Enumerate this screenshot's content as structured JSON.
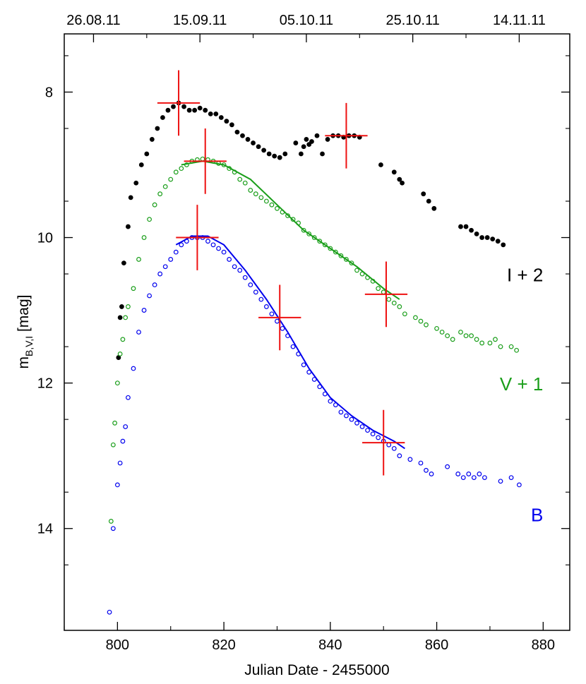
{
  "chart_data": {
    "type": "scatter",
    "title": "",
    "xlabel": "Julian Date - 2455000",
    "ylabel_main": "m",
    "ylabel_sub": "B,V,I",
    "ylabel_unit": " [mag]",
    "xlim": [
      790,
      885
    ],
    "ylim": [
      15.4,
      7.2
    ],
    "y_inverted": true,
    "grid": false,
    "x_ticks": [
      800,
      820,
      840,
      860,
      880
    ],
    "x_tick_labels": [
      "800",
      "820",
      "840",
      "860",
      "880"
    ],
    "y_ticks": [
      8,
      10,
      12,
      14
    ],
    "y_tick_labels": [
      "8",
      "10",
      "12",
      "14"
    ],
    "top_ticks": [
      {
        "x": 795.5,
        "label": "26.08.11"
      },
      {
        "x": 815.5,
        "label": "15.09.11"
      },
      {
        "x": 835.5,
        "label": "05.10.11"
      },
      {
        "x": 855.5,
        "label": "25.10.11"
      },
      {
        "x": 875.5,
        "label": "14.11.11"
      }
    ],
    "colors": {
      "I": "#000000",
      "V": "#1a9e1a",
      "B": "#0000ee",
      "cross": "#ee1111"
    },
    "series": [
      {
        "name": "I + 2",
        "color": "#000000",
        "marker": "filled-circle",
        "x": [
          800.2,
          800.5,
          800.8,
          801.2,
          802.0,
          802.5,
          803.5,
          804.5,
          805.5,
          806.5,
          807.5,
          808.5,
          809.5,
          810.5,
          811.5,
          812.5,
          813.5,
          814.5,
          815.5,
          816.5,
          817.5,
          818.5,
          819.5,
          820.5,
          821.5,
          822.5,
          823.5,
          824.5,
          825.5,
          826.5,
          827.5,
          828.5,
          829.5,
          830.5,
          831.5,
          833.5,
          834.5,
          835.0,
          835.5,
          836.0,
          836.5,
          837.5,
          838.5,
          839.5,
          840.5,
          841.5,
          842.5,
          843.5,
          844.5,
          845.5,
          849.5,
          852.0,
          853.0,
          853.5,
          857.5,
          858.5,
          859.5,
          864.5,
          865.5,
          866.5,
          867.5,
          868.5,
          869.5,
          870.5,
          871.5,
          872.5
        ],
        "y": [
          11.65,
          11.1,
          10.95,
          10.35,
          9.85,
          9.45,
          9.25,
          9.0,
          8.85,
          8.65,
          8.5,
          8.35,
          8.25,
          8.2,
          8.15,
          8.2,
          8.25,
          8.25,
          8.22,
          8.25,
          8.3,
          8.3,
          8.35,
          8.4,
          8.45,
          8.55,
          8.6,
          8.65,
          8.7,
          8.75,
          8.8,
          8.85,
          8.88,
          8.9,
          8.85,
          8.7,
          8.85,
          8.75,
          8.65,
          8.72,
          8.68,
          8.6,
          8.85,
          8.65,
          8.6,
          8.6,
          8.62,
          8.6,
          8.6,
          8.62,
          9.0,
          9.1,
          9.2,
          9.25,
          9.4,
          9.5,
          9.6,
          9.85,
          9.85,
          9.9,
          9.95,
          10.0,
          10.0,
          10.02,
          10.05,
          10.1
        ]
      },
      {
        "name": "V + 1",
        "color": "#1a9e1a",
        "marker": "open-circle",
        "x": [
          798.8,
          799.2,
          799.5,
          800.0,
          800.5,
          801.0,
          801.5,
          802.0,
          803.0,
          804.0,
          805.0,
          806.0,
          807.0,
          808.0,
          809.0,
          810.0,
          811.0,
          812.0,
          813.0,
          814.0,
          815.0,
          816.0,
          817.0,
          818.0,
          819.0,
          820.0,
          821.0,
          822.0,
          823.0,
          824.0,
          825.0,
          826.0,
          827.0,
          828.0,
          829.0,
          830.0,
          831.0,
          832.0,
          833.0,
          834.0,
          835.0,
          836.0,
          837.0,
          838.0,
          839.0,
          840.0,
          841.0,
          842.0,
          843.0,
          844.0,
          845.0,
          846.0,
          847.0,
          848.0,
          849.0,
          850.0,
          851.0,
          852.0,
          853.0,
          854.0,
          856.0,
          857.0,
          858.0,
          860.0,
          861.0,
          862.0,
          863.0,
          864.5,
          865.5,
          866.5,
          867.5,
          868.5,
          870.0,
          871.0,
          872.0,
          874.0,
          875.0
        ],
        "y": [
          13.9,
          12.85,
          12.55,
          12.0,
          11.6,
          11.4,
          11.1,
          10.95,
          10.7,
          10.3,
          10.0,
          9.75,
          9.55,
          9.4,
          9.3,
          9.2,
          9.1,
          9.05,
          9.0,
          8.95,
          8.93,
          8.92,
          8.93,
          8.95,
          8.98,
          9.0,
          9.05,
          9.1,
          9.2,
          9.25,
          9.35,
          9.4,
          9.45,
          9.5,
          9.55,
          9.6,
          9.65,
          9.7,
          9.75,
          9.8,
          9.9,
          9.95,
          10.0,
          10.05,
          10.1,
          10.15,
          10.2,
          10.25,
          10.3,
          10.35,
          10.45,
          10.5,
          10.55,
          10.6,
          10.7,
          10.75,
          10.85,
          10.9,
          10.95,
          11.05,
          11.1,
          11.15,
          11.2,
          11.25,
          11.3,
          11.35,
          11.4,
          11.3,
          11.35,
          11.35,
          11.4,
          11.45,
          11.45,
          11.4,
          11.5,
          11.5,
          11.55
        ]
      },
      {
        "name": "B",
        "color": "#0000ee",
        "marker": "open-circle",
        "x": [
          798.5,
          799.2,
          800.0,
          800.5,
          801.0,
          801.5,
          802.0,
          803.0,
          804.0,
          805.0,
          806.0,
          807.0,
          808.0,
          809.0,
          810.0,
          811.0,
          812.0,
          813.0,
          814.0,
          815.0,
          816.0,
          817.0,
          818.0,
          819.0,
          820.0,
          821.0,
          822.0,
          823.0,
          824.0,
          825.0,
          826.0,
          827.0,
          828.0,
          829.0,
          830.0,
          831.0,
          832.0,
          833.0,
          834.0,
          835.0,
          836.0,
          837.0,
          838.0,
          839.0,
          840.0,
          841.0,
          842.0,
          843.0,
          844.0,
          845.0,
          846.0,
          847.0,
          848.0,
          849.0,
          850.0,
          851.0,
          852.0,
          853.0,
          855.0,
          857.0,
          858.0,
          859.0,
          862.0,
          864.0,
          865.0,
          866.0,
          867.0,
          868.0,
          869.0,
          872.0,
          874.0,
          875.5
        ],
        "y": [
          15.15,
          14.0,
          13.4,
          13.1,
          12.8,
          12.6,
          12.2,
          11.8,
          11.3,
          11.0,
          10.8,
          10.65,
          10.5,
          10.4,
          10.3,
          10.2,
          10.1,
          10.05,
          10.0,
          10.0,
          10.0,
          10.05,
          10.1,
          10.15,
          10.2,
          10.3,
          10.4,
          10.45,
          10.55,
          10.65,
          10.75,
          10.85,
          10.95,
          11.05,
          11.15,
          11.25,
          11.35,
          11.5,
          11.6,
          11.75,
          11.85,
          11.95,
          12.05,
          12.15,
          12.25,
          12.3,
          12.4,
          12.45,
          12.5,
          12.55,
          12.6,
          12.65,
          12.7,
          12.75,
          12.8,
          12.85,
          12.9,
          13.0,
          13.05,
          13.1,
          13.2,
          13.25,
          13.15,
          13.25,
          13.3,
          13.25,
          13.3,
          13.25,
          13.3,
          13.35,
          13.3,
          13.4
        ]
      }
    ],
    "fit_lines": [
      {
        "series": "V + 1",
        "color": "#1a9e1a",
        "x": [
          812,
          816,
          820,
          825,
          830,
          835,
          840,
          845,
          850,
          853
        ],
        "y": [
          9.0,
          8.95,
          9.0,
          9.2,
          9.55,
          9.9,
          10.15,
          10.4,
          10.7,
          10.85
        ]
      },
      {
        "series": "B",
        "color": "#0000ee",
        "x": [
          811,
          814,
          817,
          820,
          824,
          828,
          832,
          836,
          840,
          844,
          848,
          852,
          854
        ],
        "y": [
          10.1,
          9.98,
          9.98,
          10.1,
          10.45,
          10.85,
          11.3,
          11.8,
          12.2,
          12.45,
          12.65,
          12.8,
          12.9
        ]
      }
    ],
    "crosses": [
      {
        "x": 811.5,
        "y": 8.15,
        "dx": 4.0,
        "dy": 0.45
      },
      {
        "x": 843.0,
        "y": 8.6,
        "dx": 4.0,
        "dy": 0.45
      },
      {
        "x": 816.5,
        "y": 8.95,
        "dx": 4.0,
        "dy": 0.45
      },
      {
        "x": 850.5,
        "y": 10.78,
        "dx": 4.0,
        "dy": 0.45
      },
      {
        "x": 815.0,
        "y": 10.0,
        "dx": 4.0,
        "dy": 0.45
      },
      {
        "x": 830.5,
        "y": 11.1,
        "dx": 4.0,
        "dy": 0.45
      },
      {
        "x": 850.0,
        "y": 12.82,
        "dx": 4.0,
        "dy": 0.45
      }
    ],
    "labels": [
      {
        "text": "I + 2",
        "color": "#000000",
        "x": 880,
        "y": 10.6
      },
      {
        "text": "V + 1",
        "color": "#1a9e1a",
        "x": 880,
        "y": 12.1
      },
      {
        "text": "B",
        "color": "#0000ee",
        "x": 880,
        "y": 13.9
      }
    ]
  }
}
